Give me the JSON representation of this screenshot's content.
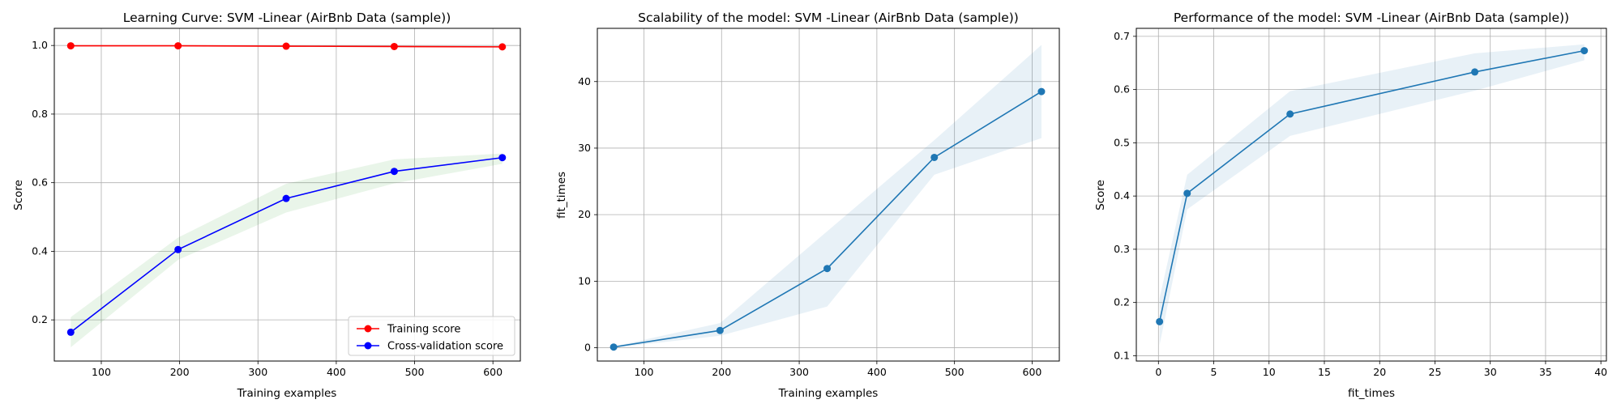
{
  "chart_data": [
    {
      "type": "line",
      "title": "Learning Curve: SVM -Linear (AirBnb Data (sample))",
      "xlabel": "Training examples",
      "ylabel": "Score",
      "xlim": [
        40,
        635
      ],
      "ylim": [
        0.08,
        1.05
      ],
      "xticks": [
        100,
        200,
        300,
        400,
        500,
        600
      ],
      "yticks": [
        0.2,
        0.4,
        0.6,
        0.8,
        1.0
      ],
      "grid": true,
      "legend": "lower-right",
      "series": [
        {
          "name": "Training score",
          "color": "#ff0000",
          "x": [
            61,
            198,
            336,
            474,
            612
          ],
          "y": [
            0.999,
            0.999,
            0.998,
            0.997,
            0.996
          ],
          "band_lower": [
            0.998,
            0.998,
            0.996,
            0.995,
            0.994
          ],
          "band_upper": [
            1.0,
            1.0,
            1.0,
            0.999,
            0.998
          ],
          "band_color": "#ff0000"
        },
        {
          "name": "Cross-validation score",
          "color": "#0000ff",
          "x": [
            61,
            198,
            336,
            474,
            612
          ],
          "y": [
            0.164,
            0.405,
            0.554,
            0.633,
            0.673
          ],
          "band_lower": [
            0.12,
            0.375,
            0.513,
            0.598,
            0.655
          ],
          "band_upper": [
            0.208,
            0.44,
            0.597,
            0.668,
            0.685
          ],
          "band_color": "#2ca02c"
        }
      ]
    },
    {
      "type": "line",
      "title": "Scalability of the model: SVM -Linear (AirBnb Data (sample))",
      "xlabel": "Training examples",
      "ylabel": "fit_times",
      "xlim": [
        40,
        635
      ],
      "ylim": [
        -2,
        48
      ],
      "xticks": [
        100,
        200,
        300,
        400,
        500,
        600
      ],
      "yticks": [
        0,
        10,
        20,
        30,
        40
      ],
      "grid": true,
      "series": [
        {
          "color": "#1f77b4",
          "x": [
            61,
            198,
            336,
            474,
            612
          ],
          "y": [
            0.1,
            2.6,
            11.9,
            28.6,
            38.5
          ],
          "band_lower": [
            0.0,
            1.8,
            6.2,
            26.0,
            31.5
          ],
          "band_upper": [
            0.2,
            3.7,
            17.5,
            31.2,
            45.5
          ],
          "band_color": "#1f77b4"
        }
      ]
    },
    {
      "type": "line",
      "title": "Performance of the model: SVM -Linear (AirBnb Data (sample))",
      "xlabel": "fit_times",
      "ylabel": "Score",
      "xlim": [
        -2,
        40.5
      ],
      "ylim": [
        0.09,
        0.715
      ],
      "xticks": [
        0,
        5,
        10,
        15,
        20,
        25,
        30,
        35,
        40
      ],
      "yticks": [
        0.1,
        0.2,
        0.3,
        0.4,
        0.5,
        0.6,
        0.7
      ],
      "grid": true,
      "series": [
        {
          "color": "#1f77b4",
          "x": [
            0.1,
            2.6,
            11.9,
            28.6,
            38.5
          ],
          "y": [
            0.164,
            0.405,
            0.554,
            0.633,
            0.673
          ],
          "band_lower": [
            0.12,
            0.375,
            0.513,
            0.598,
            0.655
          ],
          "band_upper": [
            0.208,
            0.44,
            0.597,
            0.668,
            0.685
          ],
          "band_color": "#1f77b4"
        }
      ]
    }
  ]
}
